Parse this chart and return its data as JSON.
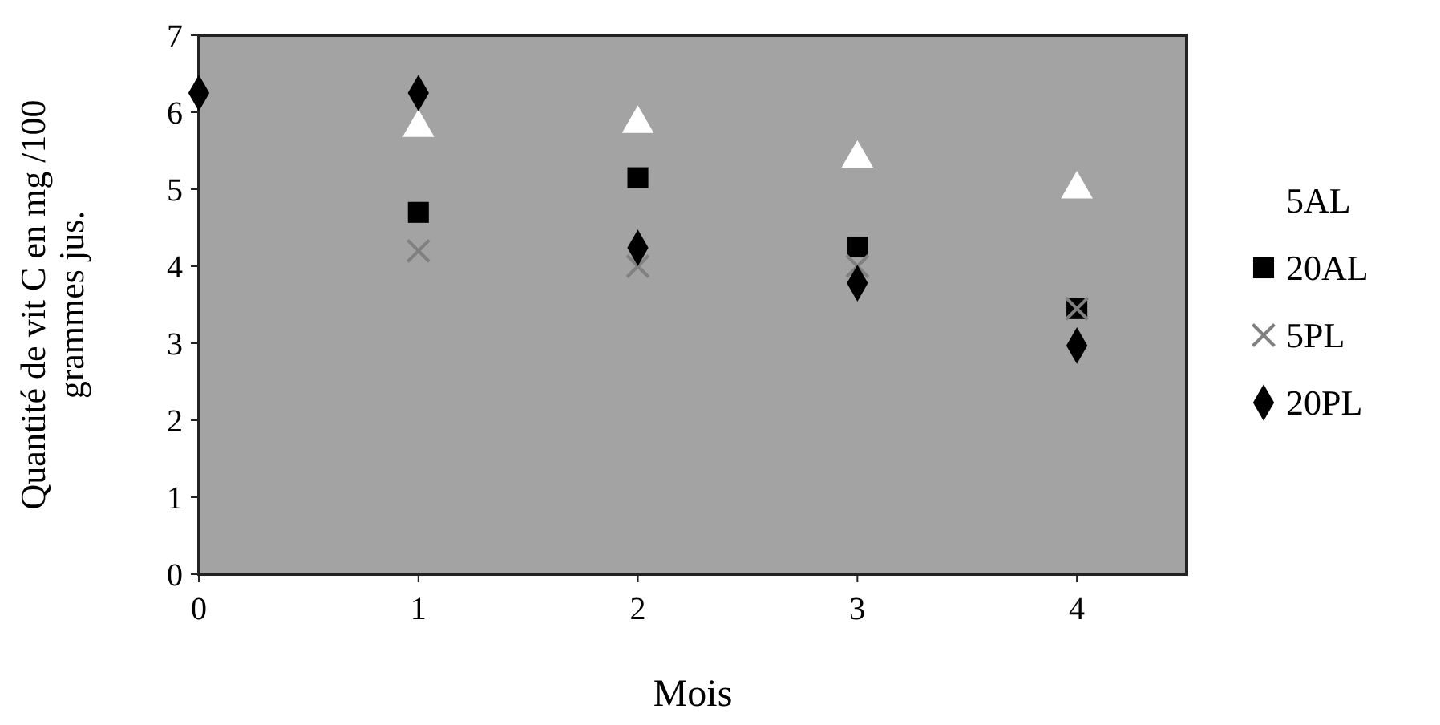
{
  "chart_data": {
    "type": "scatter",
    "xlabel": "Mois",
    "ylabel": "Quantité de vit C en mg /100 grammes jus.",
    "x": [
      0,
      1,
      2,
      3,
      4
    ],
    "xlim": [
      0,
      4.5
    ],
    "xticks": [
      0,
      1,
      2,
      3,
      4
    ],
    "ylim": [
      0,
      7
    ],
    "yticks": [
      0,
      1,
      2,
      3,
      4,
      5,
      6,
      7
    ],
    "grid": false,
    "legend": "right",
    "series": [
      {
        "name": "5AL",
        "color": "#ffffff",
        "marker": "triangle",
        "values": [
          null,
          5.8,
          5.85,
          5.4,
          5.0
        ]
      },
      {
        "name": "20AL",
        "color": "#000000",
        "marker": "square",
        "values": [
          null,
          4.7,
          5.15,
          4.25,
          3.45
        ]
      },
      {
        "name": "5PL",
        "color": "#808080",
        "marker": "cross",
        "values": [
          null,
          4.2,
          4.0,
          4.0,
          3.45
        ]
      },
      {
        "name": "20PL",
        "color": "#000000",
        "marker": "diamond",
        "values": [
          6.25,
          6.25,
          4.24,
          3.78,
          2.97
        ]
      }
    ]
  }
}
